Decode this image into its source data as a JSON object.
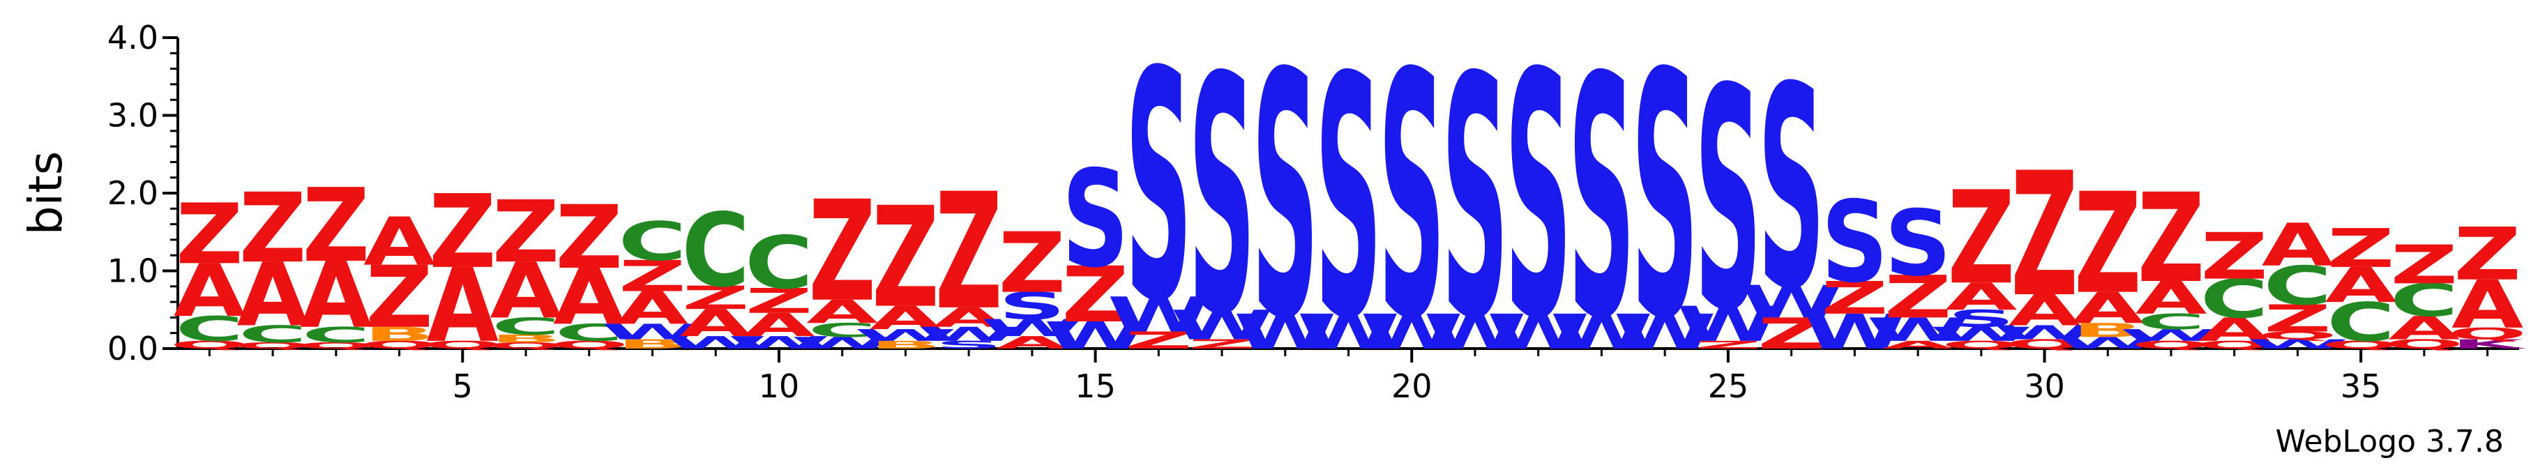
{
  "chart_data": {
    "type": "sequence-logo",
    "ylabel": "bits",
    "ylim": [
      0,
      4.0
    ],
    "yticks": [
      "0.0",
      "1.0",
      "2.0",
      "3.0",
      "4.0"
    ],
    "xticks": [
      5,
      10,
      15,
      20,
      25,
      30,
      35
    ],
    "positions": [
      1,
      37
    ],
    "credit": "WebLogo 3.7.8",
    "colors": {
      "Z": "#ee1111",
      "A": "#ee1111",
      "S": "#1a1aee",
      "W": "#1a1aee",
      "C": "#228822",
      "Q": "#ee1111",
      "B": "#ff8800",
      "K": "#880088"
    },
    "stacks": [
      [
        {
          "l": "Q",
          "h": 0.1
        },
        {
          "l": "C",
          "h": 0.32
        },
        {
          "l": "A",
          "h": 0.68
        },
        {
          "l": "Z",
          "h": 0.78
        }
      ],
      [
        {
          "l": "Q",
          "h": 0.08
        },
        {
          "l": "C",
          "h": 0.22
        },
        {
          "l": "A",
          "h": 0.82
        },
        {
          "l": "Z",
          "h": 0.9
        }
      ],
      [
        {
          "l": "Q",
          "h": 0.08
        },
        {
          "l": "C",
          "h": 0.2
        },
        {
          "l": "A",
          "h": 0.85
        },
        {
          "l": "Z",
          "h": 0.95
        }
      ],
      [
        {
          "l": "Q",
          "h": 0.1
        },
        {
          "l": "B",
          "h": 0.18
        },
        {
          "l": "Z",
          "h": 0.8
        },
        {
          "l": "A",
          "h": 0.62
        }
      ],
      [
        {
          "l": "Q",
          "h": 0.1
        },
        {
          "l": "A",
          "h": 0.95
        },
        {
          "l": "Z",
          "h": 0.95
        }
      ],
      [
        {
          "l": "Q",
          "h": 0.08
        },
        {
          "l": "B",
          "h": 0.1
        },
        {
          "l": "C",
          "h": 0.22
        },
        {
          "l": "A",
          "h": 0.72
        },
        {
          "l": "Z",
          "h": 0.8
        }
      ],
      [
        {
          "l": "Q",
          "h": 0.1
        },
        {
          "l": "C",
          "h": 0.22
        },
        {
          "l": "A",
          "h": 0.72
        },
        {
          "l": "Z",
          "h": 0.82
        }
      ],
      [
        {
          "l": "B",
          "h": 0.12
        },
        {
          "l": "W",
          "h": 0.2
        },
        {
          "l": "A",
          "h": 0.42
        },
        {
          "l": "Z",
          "h": 0.4
        },
        {
          "l": "C",
          "h": 0.5
        }
      ],
      [
        {
          "l": "W",
          "h": 0.16
        },
        {
          "l": "A",
          "h": 0.35
        },
        {
          "l": "Z",
          "h": 0.3
        },
        {
          "l": "C",
          "h": 0.95
        }
      ],
      [
        {
          "l": "W",
          "h": 0.16
        },
        {
          "l": "A",
          "h": 0.3
        },
        {
          "l": "Z",
          "h": 0.32
        },
        {
          "l": "C",
          "h": 0.68
        }
      ],
      [
        {
          "l": "W",
          "h": 0.15
        },
        {
          "l": "C",
          "h": 0.18
        },
        {
          "l": "A",
          "h": 0.3
        },
        {
          "l": "Z",
          "h": 1.3
        }
      ],
      [
        {
          "l": "B",
          "h": 0.1
        },
        {
          "l": "W",
          "h": 0.15
        },
        {
          "l": "A",
          "h": 0.3
        },
        {
          "l": "Z",
          "h": 1.3
        }
      ],
      [
        {
          "l": "S",
          "h": 0.1
        },
        {
          "l": "W",
          "h": 0.18
        },
        {
          "l": "A",
          "h": 0.25
        },
        {
          "l": "Z",
          "h": 1.5
        }
      ],
      [
        {
          "l": "A",
          "h": 0.16
        },
        {
          "l": "W",
          "h": 0.22
        },
        {
          "l": "S",
          "h": 0.35
        },
        {
          "l": "Z",
          "h": 0.78
        }
      ],
      [
        {
          "l": "W",
          "h": 0.35
        },
        {
          "l": "Z",
          "h": 0.72
        },
        {
          "l": "S",
          "h": 1.25
        }
      ],
      [
        {
          "l": "Z",
          "h": 0.22
        },
        {
          "l": "W",
          "h": 0.45
        },
        {
          "l": "S",
          "h": 2.95
        }
      ],
      [
        {
          "l": "Z",
          "h": 0.12
        },
        {
          "l": "W",
          "h": 0.38
        },
        {
          "l": "S",
          "h": 3.05
        }
      ],
      [
        {
          "l": "W",
          "h": 0.45
        },
        {
          "l": "S",
          "h": 3.15
        }
      ],
      [
        {
          "l": "W",
          "h": 0.45
        },
        {
          "l": "S",
          "h": 3.1
        }
      ],
      [
        {
          "l": "W",
          "h": 0.45
        },
        {
          "l": "S",
          "h": 3.15
        }
      ],
      [
        {
          "l": "W",
          "h": 0.45
        },
        {
          "l": "S",
          "h": 3.1
        }
      ],
      [
        {
          "l": "W",
          "h": 0.45
        },
        {
          "l": "S",
          "h": 3.15
        }
      ],
      [
        {
          "l": "W",
          "h": 0.45
        },
        {
          "l": "S",
          "h": 3.1
        }
      ],
      [
        {
          "l": "W",
          "h": 0.45
        },
        {
          "l": "S",
          "h": 3.15
        }
      ],
      [
        {
          "l": "Z",
          "h": 0.1
        },
        {
          "l": "W",
          "h": 0.45
        },
        {
          "l": "S",
          "h": 2.85
        }
      ],
      [
        {
          "l": "Z",
          "h": 0.4
        },
        {
          "l": "W",
          "h": 0.42
        },
        {
          "l": "S",
          "h": 2.6
        }
      ],
      [
        {
          "l": "W",
          "h": 0.45
        },
        {
          "l": "Z",
          "h": 0.42
        },
        {
          "l": "S",
          "h": 1.05
        }
      ],
      [
        {
          "l": "A",
          "h": 0.1
        },
        {
          "l": "W",
          "h": 0.3
        },
        {
          "l": "Z",
          "h": 0.55
        },
        {
          "l": "S",
          "h": 0.85
        }
      ],
      [
        {
          "l": "Q",
          "h": 0.1
        },
        {
          "l": "W",
          "h": 0.18
        },
        {
          "l": "S",
          "h": 0.22
        },
        {
          "l": "A",
          "h": 0.35
        },
        {
          "l": "Z",
          "h": 1.2
        }
      ],
      [
        {
          "l": "Q",
          "h": 0.12
        },
        {
          "l": "W",
          "h": 0.18
        },
        {
          "l": "A",
          "h": 0.4
        },
        {
          "l": "Z",
          "h": 1.6
        }
      ],
      [
        {
          "l": "W",
          "h": 0.15
        },
        {
          "l": "B",
          "h": 0.18
        },
        {
          "l": "A",
          "h": 0.4
        },
        {
          "l": "Z",
          "h": 1.3
        }
      ],
      [
        {
          "l": "Q",
          "h": 0.1
        },
        {
          "l": "W",
          "h": 0.15
        },
        {
          "l": "C",
          "h": 0.2
        },
        {
          "l": "A",
          "h": 0.42
        },
        {
          "l": "Z",
          "h": 1.15
        }
      ],
      [
        {
          "l": "Q",
          "h": 0.1
        },
        {
          "l": "A",
          "h": 0.3
        },
        {
          "l": "C",
          "h": 0.5
        },
        {
          "l": "Z",
          "h": 0.6
        }
      ],
      [
        {
          "l": "W",
          "h": 0.12
        },
        {
          "l": "Q",
          "h": 0.1
        },
        {
          "l": "Z",
          "h": 0.35
        },
        {
          "l": "C",
          "h": 0.5
        },
        {
          "l": "A",
          "h": 0.55
        }
      ],
      [
        {
          "l": "Q",
          "h": 0.1
        },
        {
          "l": "C",
          "h": 0.5
        },
        {
          "l": "A",
          "h": 0.45
        },
        {
          "l": "Z",
          "h": 0.5
        }
      ],
      [
        {
          "l": "Q",
          "h": 0.12
        },
        {
          "l": "A",
          "h": 0.3
        },
        {
          "l": "C",
          "h": 0.42
        },
        {
          "l": "Z",
          "h": 0.5
        }
      ],
      [
        {
          "l": "K",
          "h": 0.12
        },
        {
          "l": "Q",
          "h": 0.15
        },
        {
          "l": "A",
          "h": 0.62
        },
        {
          "l": "Z",
          "h": 0.68
        }
      ]
    ]
  }
}
